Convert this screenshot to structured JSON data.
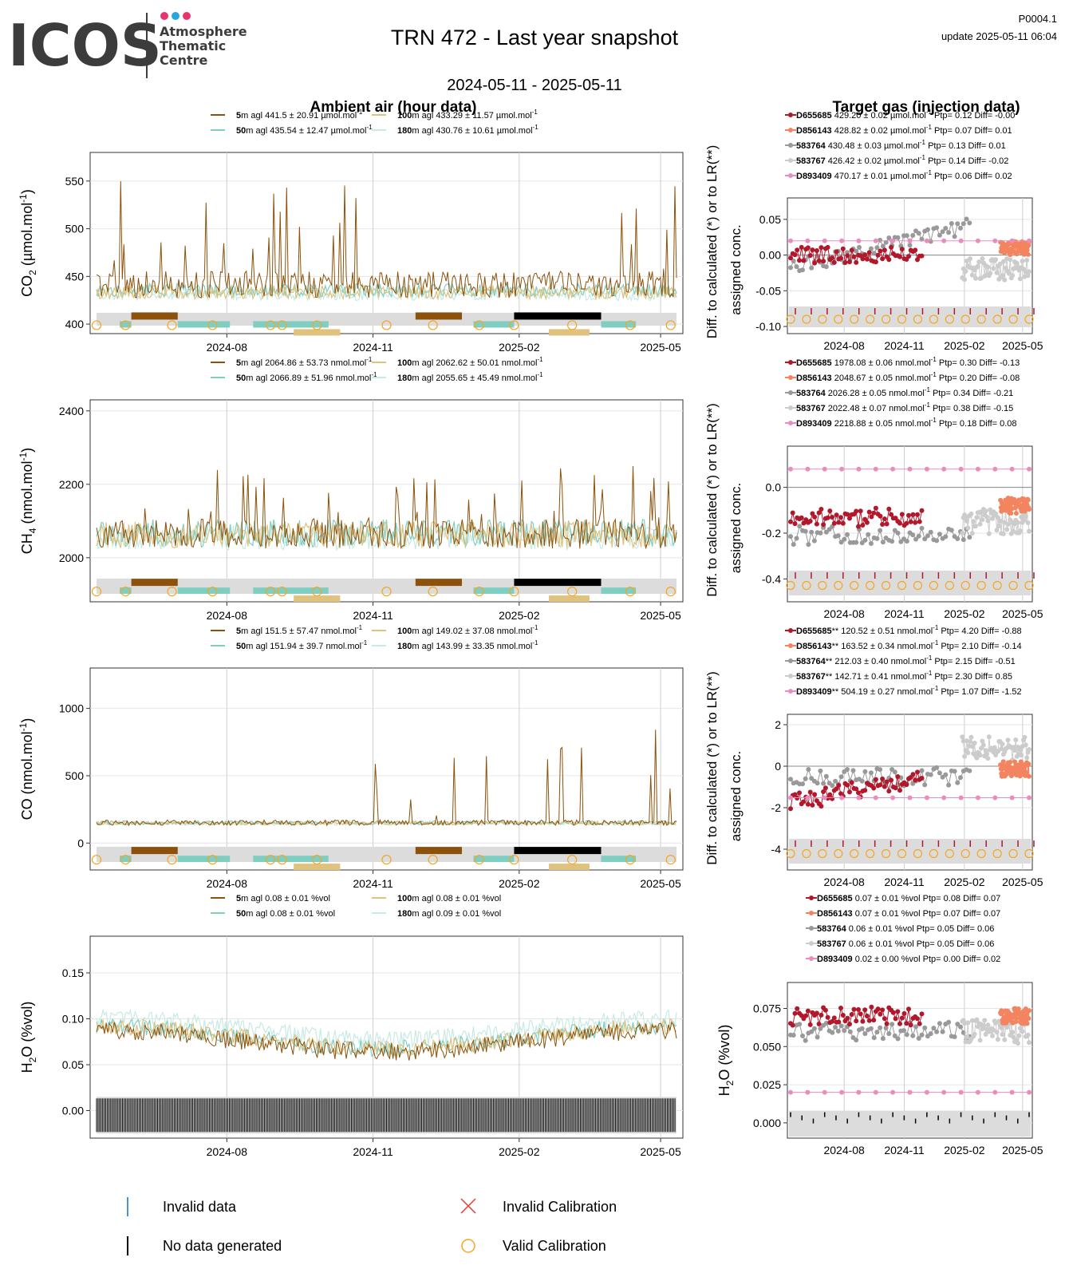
{
  "header": {
    "logo_text": "ICOS",
    "logo_sub": [
      "Atmosphere",
      "Thematic",
      "Centre"
    ],
    "title": "TRN 472 - Last year snapshot",
    "date_range": "2024-05-11 - 2025-05-11",
    "code": "P0004.1",
    "update": "update  2025-05-11 06:04"
  },
  "sections": {
    "ambient_title": "Ambient air (hour data)",
    "target_title": "Target gas (injection data)"
  },
  "colors": {
    "h5": "#8c510a",
    "h50": "#80cdc1",
    "h100": "#dfc27d",
    "h180": "#c7eae5",
    "D655685": "#b2182b",
    "D856143": "#f4845f",
    "583764": "#999999",
    "583767": "#cccccc",
    "D893409": "#e98dbf",
    "calib": "#f5a623",
    "invalid_data": "#4a90d9",
    "invalid_calib": "#e53935"
  },
  "x_ticks": [
    "2024-08",
    "2024-11",
    "2025-02",
    "2025-05"
  ],
  "diff_label": "Diff. to calculated (*) or to LR(**) or assigned conc.",
  "panels": [
    {
      "id": "co2",
      "ylabel": "CO2 (µmol.mol-1)",
      "ylabel_main": "CO",
      "ylabel_sub": "2",
      "ylabel_rest": " (µmol.mol",
      "ylabel_sup": "-1",
      "ylabel_end": ")",
      "yticks": [
        "550",
        "500",
        "450",
        "400"
      ],
      "ambient_legend": [
        {
          "height": "5",
          "text": "m agl 441.5 ± 20.91 µmol.mol",
          "sup": "-1",
          "color": "h5"
        },
        {
          "height": "100",
          "text": "m agl 433.29 ± 11.57 µmol.mol",
          "sup": "-1",
          "color": "h100"
        },
        {
          "height": "50",
          "text": "m agl 435.54 ± 12.47 µmol.mol",
          "sup": "-1",
          "color": "h50"
        },
        {
          "height": "180",
          "text": "m agl 430.76 ± 10.61 µmol.mol",
          "sup": "-1",
          "color": "h180"
        }
      ],
      "target_legend": [
        {
          "id": "D655685",
          "text": " 429.20 ± 0.02 µmol.mol",
          "sup": "-1",
          "tail": " Ptp= 0.12 Diff= -0.00"
        },
        {
          "id": "D856143",
          "text": " 428.82 ± 0.02 µmol.mol",
          "sup": "-1",
          "tail": " Ptp= 0.07 Diff= 0.01"
        },
        {
          "id": "583764",
          "text": " 430.48 ± 0.03 µmol.mol",
          "sup": "-1",
          "tail": " Ptp= 0.13 Diff= 0.01"
        },
        {
          "id": "583767",
          "text": " 426.42 ± 0.02 µmol.mol",
          "sup": "-1",
          "tail": " Ptp= 0.14 Diff= -0.02"
        },
        {
          "id": "D893409",
          "text": " 470.17 ± 0.01 µmol.mol",
          "sup": "-1",
          "tail": " Ptp= 0.06 Diff= 0.02"
        }
      ],
      "right_yticks": [
        "0.05",
        "0.00",
        "-0.05",
        "-0.10"
      ]
    },
    {
      "id": "ch4",
      "ylabel": "CH4 (nmol.mol-1)",
      "ylabel_main": "CH",
      "ylabel_sub": "4",
      "ylabel_rest": " (nmol.mol",
      "ylabel_sup": "-1",
      "ylabel_end": ")",
      "yticks": [
        "2400",
        "2200",
        "2000"
      ],
      "ambient_legend": [
        {
          "height": "5",
          "text": "m agl 2064.86 ± 53.73 nmol.mol",
          "sup": "-1",
          "color": "h5"
        },
        {
          "height": "100",
          "text": "m agl 2062.62 ± 50.01 nmol.mol",
          "sup": "-1",
          "color": "h100"
        },
        {
          "height": "50",
          "text": "m agl 2066.89 ± 51.96 nmol.mol",
          "sup": "-1",
          "color": "h50"
        },
        {
          "height": "180",
          "text": "m agl 2055.65 ± 45.49 nmol.mol",
          "sup": "-1",
          "color": "h180"
        }
      ],
      "target_legend": [
        {
          "id": "D655685",
          "text": " 1978.08 ± 0.06 nmol.mol",
          "sup": "-1",
          "tail": " Ptp= 0.30 Diff= -0.13"
        },
        {
          "id": "D856143",
          "text": " 2048.67 ± 0.05 nmol.mol",
          "sup": "-1",
          "tail": " Ptp= 0.20 Diff= -0.08"
        },
        {
          "id": "583764",
          "text": " 2026.28 ± 0.05 nmol.mol",
          "sup": "-1",
          "tail": " Ptp= 0.34 Diff= -0.21"
        },
        {
          "id": "583767",
          "text": " 2022.48 ± 0.07 nmol.mol",
          "sup": "-1",
          "tail": " Ptp= 0.38 Diff= -0.15"
        },
        {
          "id": "D893409",
          "text": " 2218.88 ± 0.05 nmol.mol",
          "sup": "-1",
          "tail": " Ptp= 0.18 Diff= 0.08"
        }
      ],
      "right_yticks": [
        "0.0",
        "-0.2",
        "-0.4"
      ]
    },
    {
      "id": "co",
      "ylabel": "CO (nmol.mol-1)",
      "ylabel_main": "CO",
      "ylabel_sub": "",
      "ylabel_rest": " (nmol.mol",
      "ylabel_sup": "-1",
      "ylabel_end": ")",
      "yticks": [
        "1000",
        "500",
        "0"
      ],
      "ambient_legend": [
        {
          "height": "5",
          "text": "m agl 151.5 ± 57.47 nmol.mol",
          "sup": "-1",
          "color": "h5"
        },
        {
          "height": "100",
          "text": "m agl 149.02 ± 37.08 nmol.mol",
          "sup": "-1",
          "color": "h100"
        },
        {
          "height": "50",
          "text": "m agl 151.94 ± 39.7 nmol.mol",
          "sup": "-1",
          "color": "h50"
        },
        {
          "height": "180",
          "text": "m agl 143.99 ± 33.35 nmol.mol",
          "sup": "-1",
          "color": "h180"
        }
      ],
      "target_legend": [
        {
          "id": "D655685",
          "text": "** 120.52 ± 0.51 nmol.mol",
          "sup": "-1",
          "tail": " Ptp= 4.20 Diff= -0.88"
        },
        {
          "id": "D856143",
          "text": "** 163.52 ± 0.34 nmol.mol",
          "sup": "-1",
          "tail": " Ptp= 2.10 Diff= -0.14"
        },
        {
          "id": "583764",
          "text": "** 212.03 ± 0.40 nmol.mol",
          "sup": "-1",
          "tail": " Ptp= 2.15 Diff= -0.51"
        },
        {
          "id": "583767",
          "text": "** 142.71 ± 0.41 nmol.mol",
          "sup": "-1",
          "tail": " Ptp= 2.30 Diff= 0.85"
        },
        {
          "id": "D893409",
          "text": "** 504.19 ± 0.27 nmol.mol",
          "sup": "-1",
          "tail": " Ptp= 1.07 Diff= -1.52"
        }
      ],
      "right_yticks": [
        "2",
        "0",
        "-2",
        "-4"
      ]
    },
    {
      "id": "h2o",
      "ylabel": "H2O (%vol)",
      "ylabel_main": "H",
      "ylabel_sub": "2",
      "ylabel_rest": "O (%vol)",
      "ylabel_sup": "",
      "ylabel_end": "",
      "yticks": [
        "0.15",
        "0.10",
        "0.05",
        "0.00"
      ],
      "ambient_legend": [
        {
          "height": "5",
          "text": "m agl 0.08 ± 0.01 %vol",
          "sup": "",
          "color": "h5"
        },
        {
          "height": "100",
          "text": "m agl 0.08 ± 0.01 %vol",
          "sup": "",
          "color": "h100"
        },
        {
          "height": "50",
          "text": "m agl 0.08 ± 0.01 %vol",
          "sup": "",
          "color": "h50"
        },
        {
          "height": "180",
          "text": "m agl 0.09 ± 0.01 %vol",
          "sup": "",
          "color": "h180"
        }
      ],
      "target_legend": [
        {
          "id": "D655685",
          "text": " 0.07 ± 0.01 %vol",
          "sup": "",
          "tail": " Ptp= 0.08 Diff= 0.07"
        },
        {
          "id": "D856143",
          "text": " 0.07 ± 0.01 %vol",
          "sup": "",
          "tail": " Ptp= 0.07 Diff= 0.07"
        },
        {
          "id": "583764",
          "text": " 0.06 ± 0.01 %vol",
          "sup": "",
          "tail": " Ptp= 0.05 Diff= 0.06"
        },
        {
          "id": "583767",
          "text": " 0.06 ± 0.01 %vol",
          "sup": "",
          "tail": " Ptp= 0.05 Diff= 0.06"
        },
        {
          "id": "D893409",
          "text": " 0.02 ± 0.00 %vol",
          "sup": "",
          "tail": " Ptp= 0.00 Diff= 0.02"
        }
      ],
      "right_yticks": [
        "0.075",
        "0.050",
        "0.025",
        "0.000"
      ],
      "right_ylabel": "H2O (%vol)"
    }
  ],
  "footer_legend": [
    {
      "label": "Invalid data",
      "symbol": "blue-bar"
    },
    {
      "label": "Invalid Calibration",
      "symbol": "red-x"
    },
    {
      "label": "No data generated",
      "symbol": "black-bar"
    },
    {
      "label": "Valid Calibration",
      "symbol": "orange-circle"
    }
  ],
  "chart_data": [
    {
      "type": "line",
      "title": "Ambient air (hour data)",
      "ylabel": "CO2 (µmol.mol-1)",
      "x": [
        "2024-05-11",
        "2025-05-11"
      ],
      "ylim": [
        390,
        580
      ],
      "series": [
        {
          "name": "5m agl",
          "mean": 441.5,
          "sd": 20.91
        },
        {
          "name": "50m agl",
          "mean": 435.54,
          "sd": 12.47
        },
        {
          "name": "100m agl",
          "mean": 433.29,
          "sd": 11.57
        },
        {
          "name": "180m agl",
          "mean": 430.76,
          "sd": 10.61
        }
      ]
    },
    {
      "type": "line",
      "ylabel": "CH4 (nmol.mol-1)",
      "ylim": [
        1880,
        2430
      ],
      "series": [
        {
          "name": "5m agl",
          "mean": 2064.86,
          "sd": 53.73
        },
        {
          "name": "50m agl",
          "mean": 2066.89,
          "sd": 51.96
        },
        {
          "name": "100m agl",
          "mean": 2062.62,
          "sd": 50.01
        },
        {
          "name": "180m agl",
          "mean": 2055.65,
          "sd": 45.49
        }
      ]
    },
    {
      "type": "line",
      "ylabel": "CO (nmol.mol-1)",
      "ylim": [
        -200,
        1300
      ],
      "series": [
        {
          "name": "5m agl",
          "mean": 151.5,
          "sd": 57.47
        },
        {
          "name": "50m agl",
          "mean": 151.94,
          "sd": 39.7
        },
        {
          "name": "100m agl",
          "mean": 149.02,
          "sd": 37.08
        },
        {
          "name": "180m agl",
          "mean": 143.99,
          "sd": 33.35
        }
      ]
    },
    {
      "type": "line",
      "ylabel": "H2O (%vol)",
      "ylim": [
        -0.03,
        0.19
      ],
      "series": [
        {
          "name": "5m agl",
          "mean": 0.08,
          "sd": 0.01
        },
        {
          "name": "50m agl",
          "mean": 0.08,
          "sd": 0.01
        },
        {
          "name": "100m agl",
          "mean": 0.08,
          "sd": 0.01
        },
        {
          "name": "180m agl",
          "mean": 0.09,
          "sd": 0.01
        }
      ]
    },
    {
      "type": "scatter",
      "title": "Target gas (injection data)",
      "ylim": [
        -0.11,
        0.08
      ],
      "series": [
        {
          "name": "D655685",
          "mean": 429.2,
          "ptp": 0.12,
          "diff": -0.0
        },
        {
          "name": "D856143",
          "mean": 428.82,
          "ptp": 0.07,
          "diff": 0.01
        },
        {
          "name": "583764",
          "mean": 430.48,
          "ptp": 0.13,
          "diff": 0.01
        },
        {
          "name": "583767",
          "mean": 426.42,
          "ptp": 0.14,
          "diff": -0.02
        },
        {
          "name": "D893409",
          "mean": 470.17,
          "ptp": 0.06,
          "diff": 0.02
        }
      ]
    },
    {
      "type": "scatter",
      "ylim": [
        -0.5,
        0.18
      ],
      "series": [
        {
          "name": "D655685",
          "mean": 1978.08,
          "ptp": 0.3,
          "diff": -0.13
        },
        {
          "name": "D856143",
          "mean": 2048.67,
          "ptp": 0.2,
          "diff": -0.08
        },
        {
          "name": "583764",
          "mean": 2026.28,
          "ptp": 0.34,
          "diff": -0.21
        },
        {
          "name": "583767",
          "mean": 2022.48,
          "ptp": 0.38,
          "diff": -0.15
        },
        {
          "name": "D893409",
          "mean": 2218.88,
          "ptp": 0.18,
          "diff": 0.08
        }
      ]
    },
    {
      "type": "scatter",
      "ylim": [
        -5,
        2.5
      ],
      "series": [
        {
          "name": "D655685",
          "mean": 120.52,
          "ptp": 4.2,
          "diff": -0.88
        },
        {
          "name": "D856143",
          "mean": 163.52,
          "ptp": 2.1,
          "diff": -0.14
        },
        {
          "name": "583764",
          "mean": 212.03,
          "ptp": 2.15,
          "diff": -0.51
        },
        {
          "name": "583767",
          "mean": 142.71,
          "ptp": 2.3,
          "diff": 0.85
        },
        {
          "name": "D893409",
          "mean": 504.19,
          "ptp": 1.07,
          "diff": -1.52
        }
      ]
    },
    {
      "type": "scatter",
      "ylabel": "H2O (%vol)",
      "ylim": [
        -0.01,
        0.092
      ],
      "series": [
        {
          "name": "D655685",
          "mean": 0.07,
          "ptp": 0.08,
          "diff": 0.07
        },
        {
          "name": "D856143",
          "mean": 0.07,
          "ptp": 0.07,
          "diff": 0.07
        },
        {
          "name": "583764",
          "mean": 0.06,
          "ptp": 0.05,
          "diff": 0.06
        },
        {
          "name": "583767",
          "mean": 0.06,
          "ptp": 0.05,
          "diff": 0.06
        },
        {
          "name": "D893409",
          "mean": 0.02,
          "ptp": 0.0,
          "diff": 0.02
        }
      ]
    }
  ]
}
